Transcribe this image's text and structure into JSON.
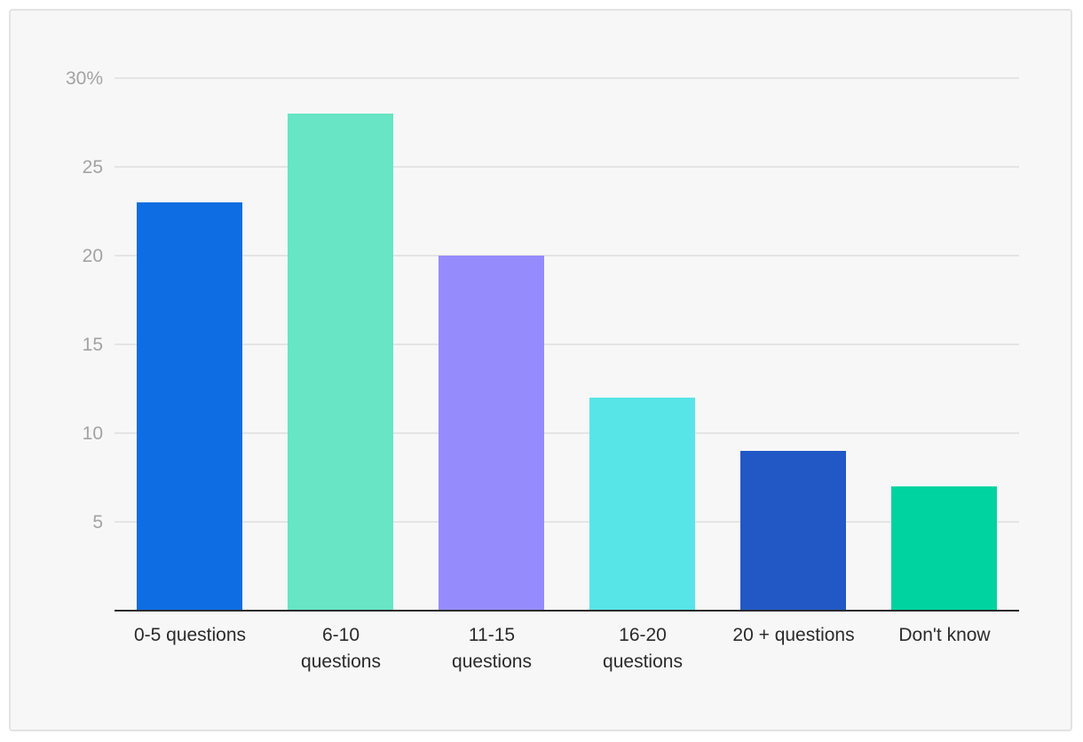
{
  "chart_data": {
    "type": "bar",
    "categories": [
      [
        "0-5 questions"
      ],
      [
        "6-10",
        "questions"
      ],
      [
        "11-15",
        "questions"
      ],
      [
        "16-20",
        "questions"
      ],
      [
        "20 + questions"
      ],
      [
        "Don't know"
      ]
    ],
    "values": [
      23,
      28,
      20,
      12,
      9,
      7
    ],
    "colors": [
      "#0f6de3",
      "#67e5c5",
      "#958bfd",
      "#57e5e7",
      "#2258c5",
      "#00d3a0"
    ],
    "ylim": [
      0,
      30
    ],
    "y_ticks": [
      {
        "value": 5,
        "label": "5"
      },
      {
        "value": 10,
        "label": "10"
      },
      {
        "value": 15,
        "label": "15"
      },
      {
        "value": 20,
        "label": "20"
      },
      {
        "value": 25,
        "label": "25"
      },
      {
        "value": 30,
        "label": "30%"
      }
    ],
    "grid": true,
    "title": "",
    "xlabel": "",
    "ylabel": ""
  }
}
